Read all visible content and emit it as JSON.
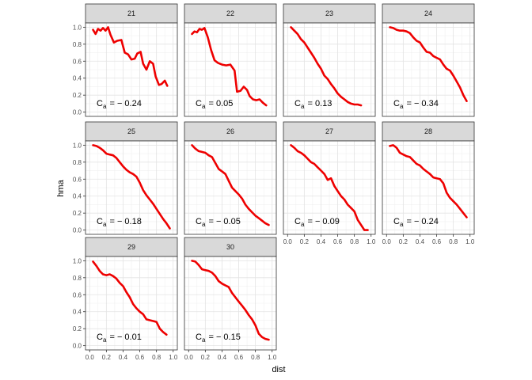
{
  "chart_data": {
    "type": "line",
    "xlabel": "dist",
    "ylabel": "hma",
    "xlim": [
      0,
      1
    ],
    "ylim": [
      0,
      1
    ],
    "x_ticks": [
      "0.0",
      "0.2",
      "0.4",
      "0.6",
      "0.8",
      "1.0"
    ],
    "y_ticks": [
      "0.0",
      "0.2",
      "0.4",
      "0.6",
      "0.8",
      "1.0"
    ],
    "grid": true,
    "series_color": "#ee0000",
    "panels": [
      {
        "facet": "21",
        "annotation": "= − 0.24",
        "x": [
          0.04,
          0.07,
          0.1,
          0.13,
          0.16,
          0.19,
          0.22,
          0.25,
          0.29,
          0.33,
          0.38,
          0.42,
          0.46,
          0.5,
          0.54,
          0.57,
          0.61,
          0.64,
          0.68,
          0.72,
          0.76,
          0.79,
          0.83,
          0.86,
          0.9,
          0.93
        ],
        "y": [
          0.97,
          0.92,
          0.98,
          0.96,
          0.99,
          0.96,
          1.0,
          0.91,
          0.82,
          0.84,
          0.85,
          0.7,
          0.68,
          0.62,
          0.63,
          0.69,
          0.71,
          0.57,
          0.5,
          0.6,
          0.57,
          0.42,
          0.32,
          0.33,
          0.37,
          0.31
        ]
      },
      {
        "facet": "22",
        "annotation": "= 0.05",
        "x": [
          0.04,
          0.07,
          0.1,
          0.13,
          0.16,
          0.19,
          0.23,
          0.27,
          0.31,
          0.35,
          0.4,
          0.45,
          0.5,
          0.55,
          0.58,
          0.62,
          0.66,
          0.7,
          0.73,
          0.77,
          0.81,
          0.85,
          0.89,
          0.93
        ],
        "y": [
          0.92,
          0.95,
          0.94,
          0.98,
          0.97,
          0.99,
          0.88,
          0.73,
          0.61,
          0.58,
          0.56,
          0.55,
          0.56,
          0.49,
          0.24,
          0.25,
          0.3,
          0.26,
          0.19,
          0.15,
          0.14,
          0.15,
          0.11,
          0.08
        ]
      },
      {
        "facet": "23",
        "annotation": "= 0.13",
        "x": [
          0.04,
          0.08,
          0.12,
          0.16,
          0.2,
          0.24,
          0.28,
          0.32,
          0.36,
          0.4,
          0.44,
          0.48,
          0.52,
          0.56,
          0.6,
          0.64,
          0.68,
          0.72,
          0.76,
          0.8,
          0.84,
          0.88
        ],
        "y": [
          1.0,
          0.96,
          0.92,
          0.86,
          0.82,
          0.76,
          0.7,
          0.64,
          0.57,
          0.51,
          0.43,
          0.39,
          0.33,
          0.28,
          0.22,
          0.18,
          0.15,
          0.12,
          0.1,
          0.09,
          0.09,
          0.08
        ]
      },
      {
        "facet": "24",
        "annotation": "= − 0.34",
        "x": [
          0.04,
          0.08,
          0.12,
          0.16,
          0.2,
          0.24,
          0.28,
          0.32,
          0.36,
          0.4,
          0.44,
          0.48,
          0.52,
          0.56,
          0.6,
          0.64,
          0.68,
          0.72,
          0.76,
          0.8,
          0.84,
          0.88,
          0.92,
          0.96
        ],
        "y": [
          1.0,
          0.99,
          0.97,
          0.96,
          0.96,
          0.95,
          0.93,
          0.88,
          0.84,
          0.82,
          0.76,
          0.71,
          0.7,
          0.66,
          0.64,
          0.62,
          0.56,
          0.51,
          0.49,
          0.43,
          0.36,
          0.29,
          0.2,
          0.13
        ]
      },
      {
        "facet": "25",
        "annotation": "= − 0.18",
        "x": [
          0.04,
          0.08,
          0.12,
          0.16,
          0.2,
          0.24,
          0.28,
          0.32,
          0.36,
          0.4,
          0.44,
          0.48,
          0.52,
          0.56,
          0.6,
          0.64,
          0.68,
          0.72,
          0.76,
          0.8,
          0.84,
          0.88,
          0.92,
          0.96
        ],
        "y": [
          1.0,
          0.99,
          0.97,
          0.94,
          0.9,
          0.89,
          0.88,
          0.85,
          0.8,
          0.75,
          0.71,
          0.68,
          0.66,
          0.63,
          0.56,
          0.47,
          0.41,
          0.36,
          0.31,
          0.25,
          0.19,
          0.13,
          0.08,
          0.02
        ]
      },
      {
        "facet": "26",
        "annotation": "= − 0.05",
        "x": [
          0.04,
          0.08,
          0.12,
          0.16,
          0.2,
          0.24,
          0.28,
          0.32,
          0.36,
          0.4,
          0.44,
          0.48,
          0.52,
          0.56,
          0.6,
          0.64,
          0.68,
          0.72,
          0.76,
          0.8,
          0.84,
          0.88,
          0.92,
          0.96
        ],
        "y": [
          1.0,
          0.96,
          0.93,
          0.92,
          0.91,
          0.88,
          0.86,
          0.79,
          0.72,
          0.69,
          0.66,
          0.58,
          0.5,
          0.46,
          0.42,
          0.37,
          0.3,
          0.25,
          0.21,
          0.17,
          0.14,
          0.11,
          0.08,
          0.06
        ]
      },
      {
        "facet": "27",
        "annotation": "= − 0.09",
        "x": [
          0.04,
          0.08,
          0.12,
          0.16,
          0.2,
          0.24,
          0.28,
          0.32,
          0.36,
          0.4,
          0.44,
          0.48,
          0.52,
          0.56,
          0.6,
          0.64,
          0.68,
          0.72,
          0.76,
          0.8,
          0.84,
          0.88,
          0.92,
          0.96
        ],
        "y": [
          1.0,
          0.97,
          0.93,
          0.91,
          0.88,
          0.84,
          0.8,
          0.78,
          0.74,
          0.7,
          0.66,
          0.59,
          0.61,
          0.52,
          0.46,
          0.4,
          0.36,
          0.3,
          0.26,
          0.22,
          0.12,
          0.06,
          0.0,
          0.0
        ]
      },
      {
        "facet": "28",
        "annotation": "= − 0.24",
        "x": [
          0.04,
          0.08,
          0.12,
          0.16,
          0.2,
          0.24,
          0.28,
          0.32,
          0.36,
          0.4,
          0.44,
          0.48,
          0.52,
          0.56,
          0.6,
          0.64,
          0.68,
          0.72,
          0.76,
          0.8,
          0.84,
          0.88,
          0.92,
          0.96
        ],
        "y": [
          0.99,
          1.0,
          0.97,
          0.91,
          0.89,
          0.87,
          0.86,
          0.82,
          0.78,
          0.76,
          0.72,
          0.69,
          0.66,
          0.62,
          0.61,
          0.6,
          0.55,
          0.44,
          0.38,
          0.34,
          0.3,
          0.25,
          0.2,
          0.15
        ]
      },
      {
        "facet": "29",
        "annotation": "= − 0.01",
        "x": [
          0.04,
          0.08,
          0.12,
          0.16,
          0.2,
          0.24,
          0.28,
          0.32,
          0.36,
          0.4,
          0.44,
          0.48,
          0.52,
          0.56,
          0.6,
          0.64,
          0.68,
          0.72,
          0.76,
          0.8,
          0.84,
          0.88,
          0.92
        ],
        "y": [
          0.99,
          0.94,
          0.88,
          0.84,
          0.83,
          0.84,
          0.82,
          0.79,
          0.74,
          0.7,
          0.63,
          0.57,
          0.49,
          0.44,
          0.4,
          0.37,
          0.31,
          0.3,
          0.29,
          0.28,
          0.2,
          0.16,
          0.13
        ]
      },
      {
        "facet": "30",
        "annotation": "= − 0.15",
        "x": [
          0.04,
          0.08,
          0.12,
          0.16,
          0.2,
          0.24,
          0.28,
          0.32,
          0.36,
          0.4,
          0.44,
          0.48,
          0.52,
          0.56,
          0.6,
          0.64,
          0.68,
          0.72,
          0.76,
          0.8,
          0.84,
          0.88,
          0.92,
          0.96
        ],
        "y": [
          1.0,
          0.99,
          0.95,
          0.9,
          0.89,
          0.88,
          0.86,
          0.82,
          0.76,
          0.73,
          0.71,
          0.69,
          0.62,
          0.57,
          0.52,
          0.47,
          0.42,
          0.36,
          0.31,
          0.24,
          0.14,
          0.1,
          0.08,
          0.07
        ]
      }
    ]
  }
}
